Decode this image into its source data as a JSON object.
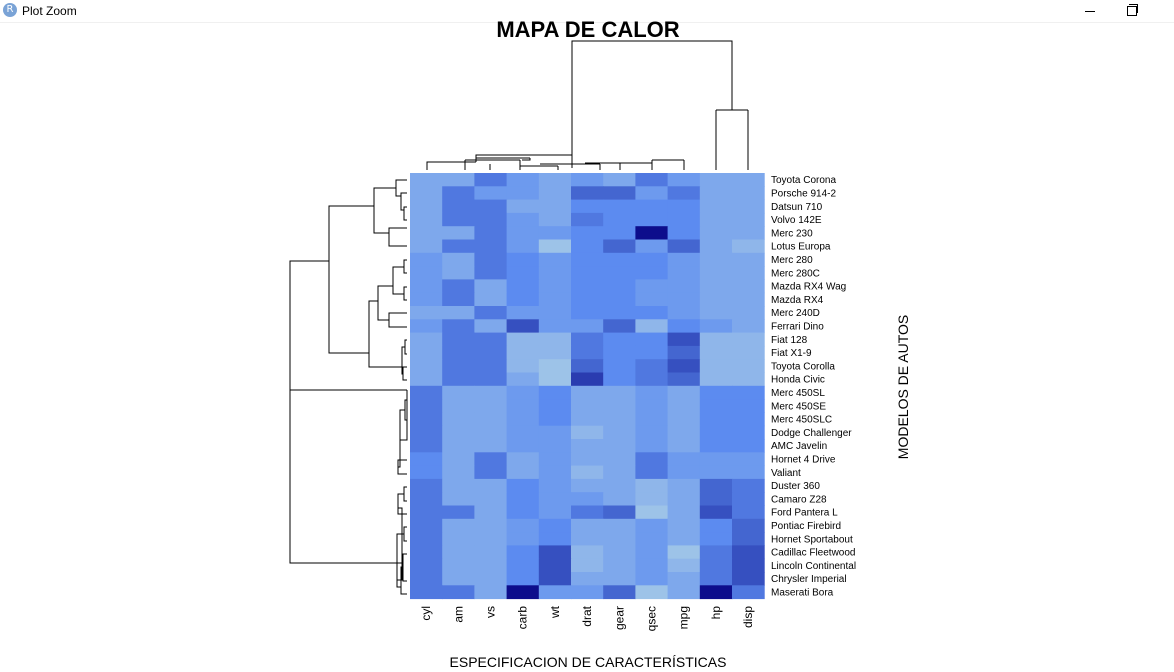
{
  "window": {
    "title": "Plot Zoom",
    "app_icon_glyph": "R",
    "minimize_icon": "minimize-icon",
    "maximize_icon": "restore-icon"
  },
  "chart_data": {
    "type": "heatmap",
    "title": "MAPA DE CALOR",
    "xlabel": "ESPECIFICACION DE CARACTERÍSTICAS",
    "ylabel": "MODELOS DE AUTOS",
    "columns": [
      "cyl",
      "am",
      "vs",
      "carb",
      "wt",
      "drat",
      "gear",
      "qsec",
      "mpg",
      "hp",
      "disp"
    ],
    "rows": [
      "Toyota Corona",
      "Porsche 914-2",
      "Datsun 710",
      "Volvo 142E",
      "Merc 230",
      "Lotus Europa",
      "Merc 280",
      "Merc 280C",
      "Mazda RX4 Wag",
      "Mazda RX4",
      "Merc 240D",
      "Ferrari Dino",
      "Fiat 128",
      "Fiat X1-9",
      "Toyota Corolla",
      "Honda Civic",
      "Merc 450SL",
      "Merc 450SE",
      "Merc 450SLC",
      "Dodge Challenger",
      "AMC Javelin",
      "Hornet 4 Drive",
      "Valiant",
      "Duster 360",
      "Camaro Z28",
      "Ford Pantera L",
      "Pontiac Firebird",
      "Hornet Sportabout",
      "Cadillac Fleetwood",
      "Lincoln Continental",
      "Chrysler Imperial",
      "Maserati Bora"
    ],
    "values": [
      [
        3,
        3,
        6,
        4,
        3,
        4,
        3,
        6,
        4,
        3,
        3
      ],
      [
        3,
        6,
        4,
        4,
        3,
        7,
        7,
        4,
        6,
        3,
        3
      ],
      [
        3,
        6,
        6,
        3,
        3,
        5,
        5,
        5,
        5,
        3,
        3
      ],
      [
        3,
        6,
        6,
        4,
        3,
        6,
        5,
        5,
        5,
        3,
        3
      ],
      [
        3,
        3,
        6,
        4,
        4,
        5,
        5,
        10,
        5,
        3,
        3
      ],
      [
        3,
        6,
        6,
        4,
        1,
        5,
        7,
        4,
        7,
        3,
        2
      ],
      [
        4,
        3,
        6,
        5,
        4,
        5,
        5,
        5,
        4,
        3,
        3
      ],
      [
        4,
        3,
        6,
        5,
        4,
        5,
        5,
        5,
        4,
        3,
        3
      ],
      [
        4,
        6,
        3,
        5,
        4,
        5,
        5,
        4,
        4,
        3,
        3
      ],
      [
        4,
        6,
        3,
        5,
        4,
        5,
        5,
        4,
        4,
        3,
        3
      ],
      [
        3,
        3,
        6,
        4,
        4,
        5,
        5,
        5,
        4,
        3,
        3
      ],
      [
        4,
        6,
        3,
        8,
        4,
        4,
        7,
        2,
        5,
        4,
        3
      ],
      [
        3,
        6,
        6,
        2,
        2,
        6,
        5,
        5,
        8,
        2,
        2
      ],
      [
        3,
        6,
        6,
        2,
        2,
        6,
        5,
        5,
        7,
        2,
        2
      ],
      [
        3,
        6,
        6,
        2,
        1,
        7,
        5,
        6,
        8,
        2,
        2
      ],
      [
        3,
        6,
        6,
        3,
        1,
        9,
        5,
        6,
        7,
        2,
        2
      ],
      [
        6,
        3,
        3,
        4,
        5,
        3,
        3,
        4,
        3,
        5,
        5
      ],
      [
        6,
        3,
        3,
        4,
        5,
        3,
        3,
        4,
        3,
        5,
        5
      ],
      [
        6,
        3,
        3,
        4,
        5,
        3,
        3,
        4,
        3,
        5,
        5
      ],
      [
        6,
        3,
        3,
        4,
        4,
        2,
        3,
        4,
        3,
        5,
        5
      ],
      [
        6,
        3,
        3,
        4,
        4,
        3,
        3,
        4,
        3,
        5,
        5
      ],
      [
        5,
        3,
        6,
        3,
        4,
        3,
        3,
        6,
        4,
        4,
        4
      ],
      [
        5,
        3,
        6,
        3,
        4,
        2,
        3,
        6,
        4,
        4,
        4
      ],
      [
        6,
        3,
        3,
        5,
        4,
        3,
        3,
        2,
        3,
        7,
        6
      ],
      [
        6,
        3,
        3,
        5,
        4,
        4,
        3,
        2,
        3,
        7,
        6
      ],
      [
        6,
        6,
        3,
        5,
        4,
        6,
        7,
        1,
        3,
        8,
        6
      ],
      [
        6,
        3,
        3,
        4,
        5,
        3,
        3,
        4,
        3,
        5,
        7
      ],
      [
        6,
        3,
        3,
        4,
        5,
        3,
        3,
        4,
        3,
        5,
        7
      ],
      [
        6,
        3,
        3,
        5,
        8,
        2,
        3,
        4,
        1,
        6,
        8
      ],
      [
        6,
        3,
        3,
        5,
        8,
        2,
        3,
        4,
        2,
        6,
        8
      ],
      [
        6,
        3,
        3,
        5,
        8,
        3,
        3,
        4,
        3,
        6,
        8
      ],
      [
        6,
        6,
        3,
        10,
        4,
        4,
        7,
        1,
        3,
        10,
        6
      ]
    ],
    "color_scale": [
      "#a6cfe8",
      "#9dc3e8",
      "#8fb6ea",
      "#7ea8ec",
      "#6d9aee",
      "#5c8bf0",
      "#5078e0",
      "#4466d0",
      "#3650c0",
      "#2a3cb0",
      "#0d0d8c"
    ],
    "dendrogram_row_order": "top-to-bottom",
    "dendrogram_col_order": "left-to-right",
    "grid": false,
    "legend": "none"
  }
}
